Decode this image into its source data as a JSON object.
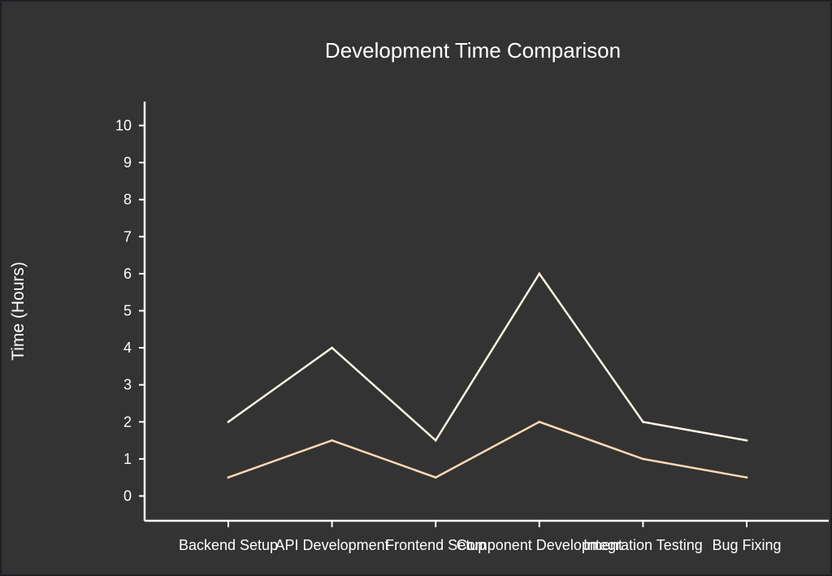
{
  "chart_data": {
    "type": "line",
    "title": "Development Time Comparison",
    "xlabel": "",
    "ylabel": "Time (Hours)",
    "categories": [
      "Backend Setup",
      "API Development",
      "Frontend Setup",
      "Component Development",
      "Integration Testing",
      "Bug Fixing"
    ],
    "yticks": [
      0,
      1,
      2,
      3,
      4,
      5,
      6,
      7,
      8,
      9,
      10
    ],
    "ylim": [
      -0.65,
      10.6
    ],
    "grid": false,
    "series": [
      {
        "values": [
          2,
          4,
          1.5,
          6,
          2,
          1.5
        ],
        "color": "#fff5e6"
      },
      {
        "values": [
          0.5,
          1.5,
          0.5,
          2,
          1,
          0.5
        ],
        "color": "#ffd9b3"
      }
    ]
  }
}
